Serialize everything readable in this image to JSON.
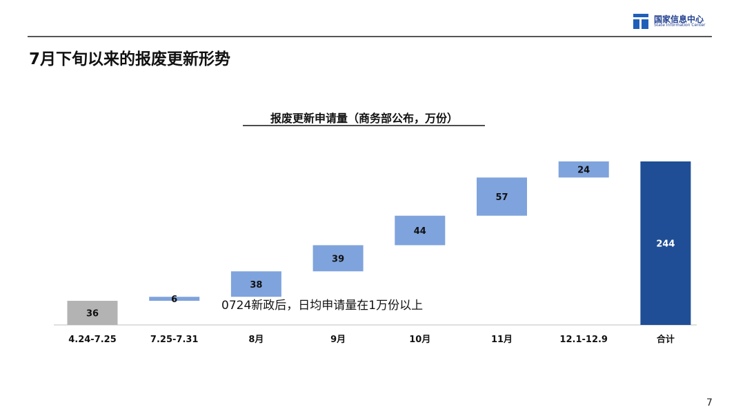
{
  "header": {
    "logo_cn": "国家信息中心",
    "logo_en": "State Information Center",
    "page_title": "7月下旬以来的报废更新形势"
  },
  "footer": {
    "page_number": "7"
  },
  "colors": {
    "initial_bar": "#b3b3b3",
    "increment_bar": "#7fa3dc",
    "total_bar": "#1f4e96",
    "logo_blue": "#1f5fb8"
  },
  "chart_data": {
    "type": "bar",
    "subtype": "waterfall",
    "title": "报废更新申请量（商务部公布，万份）",
    "categories": [
      "4.24-7.25",
      "7.25-7.31",
      "8月",
      "9月",
      "10月",
      "11月",
      "12.1-12.9",
      "合计"
    ],
    "values": [
      36,
      6,
      38,
      39,
      44,
      57,
      24,
      244
    ],
    "bar_kinds": [
      "initial",
      "increment",
      "increment",
      "increment",
      "increment",
      "increment",
      "increment",
      "total"
    ],
    "data_labels": [
      "36",
      "6",
      "38",
      "39",
      "44",
      "57",
      "24",
      "244"
    ],
    "annotation": "0724新政后，日均申请量在1万份以上",
    "ylim": [
      0,
      244
    ],
    "grid": false,
    "legend": "none"
  }
}
